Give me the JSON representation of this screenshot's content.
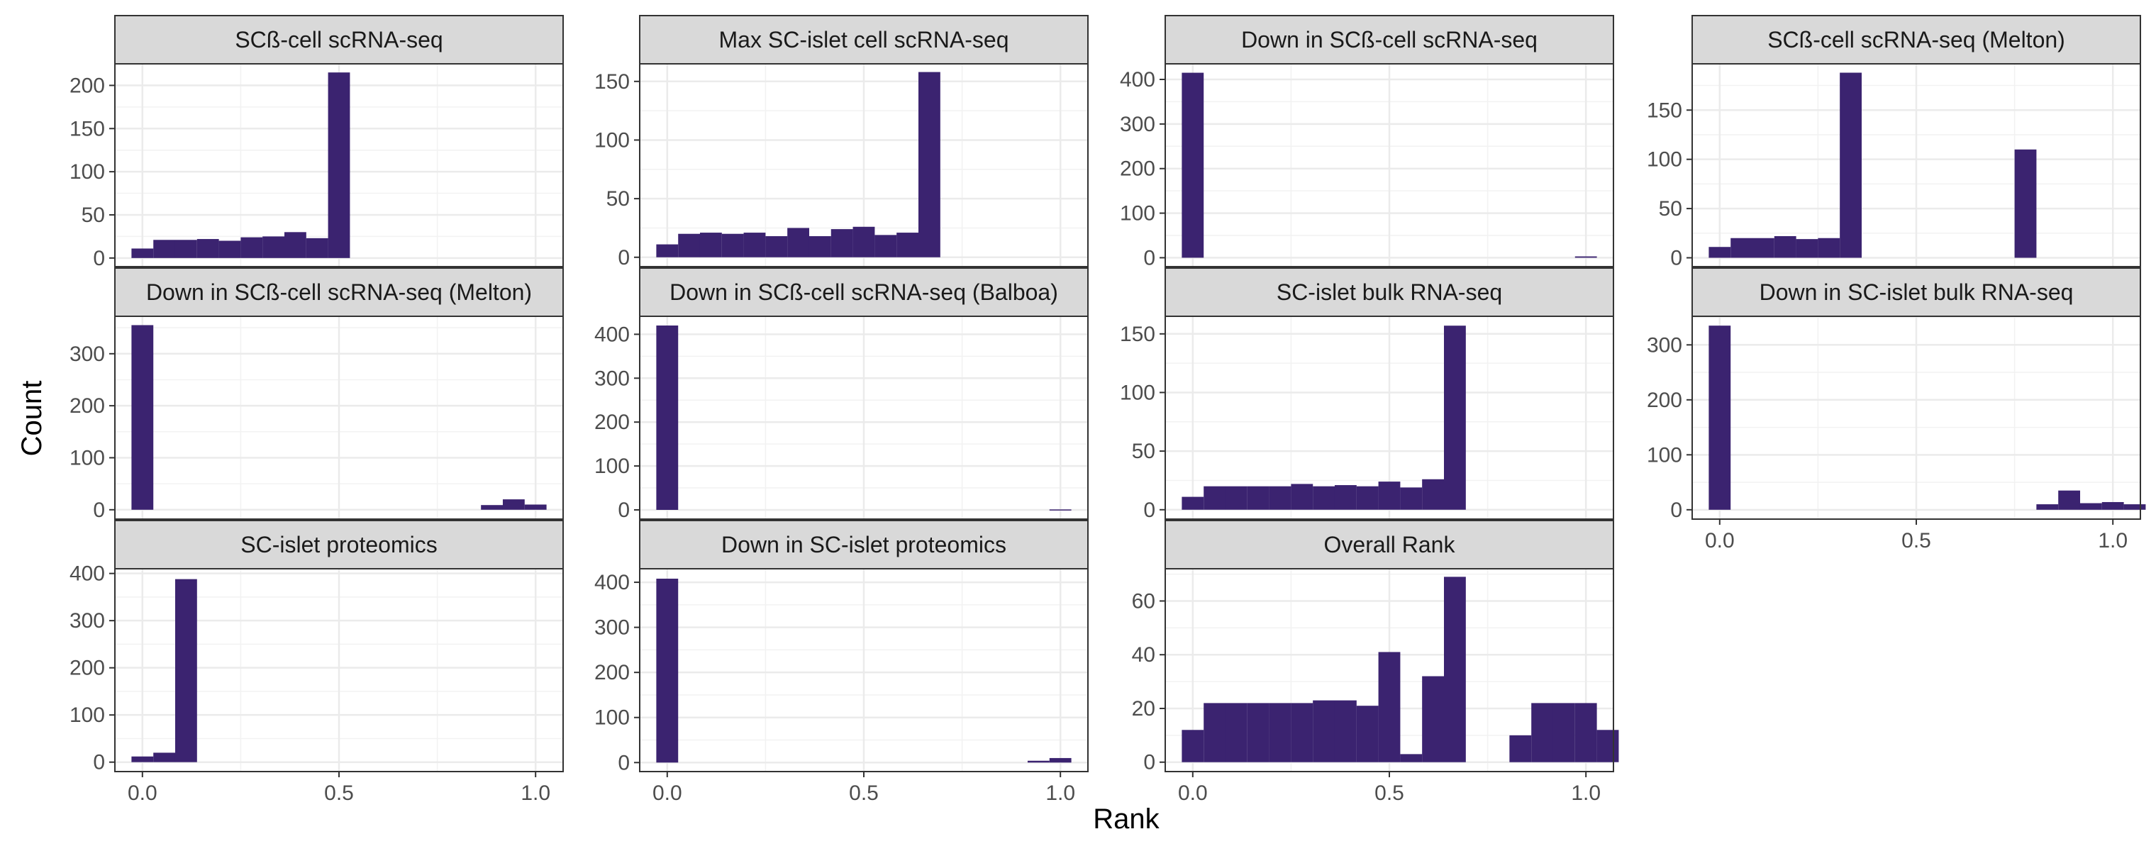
{
  "chart_data": {
    "type": "bar",
    "layout": "facet-grid",
    "xlabel": "Rank",
    "ylabel": "Count",
    "bar_color": "#3b2370",
    "strip_fill": "#d9d9d9",
    "grid": true,
    "xlim": [
      -0.07,
      1.07
    ],
    "x_ticks": [
      0.0,
      0.5,
      1.0
    ],
    "x_tick_labels": [
      "0.0",
      "0.5",
      "1.0"
    ],
    "bin_width": 0.0556,
    "panels": [
      {
        "title": "SCß-cell scRNA-seq",
        "ylim": [
          -10,
          225
        ],
        "y_ticks": [
          0,
          50,
          100,
          150,
          200
        ],
        "bins": [
          {
            "x": 0.0,
            "count": 11
          },
          {
            "x": 0.0556,
            "count": 21
          },
          {
            "x": 0.1111,
            "count": 21
          },
          {
            "x": 0.1667,
            "count": 22
          },
          {
            "x": 0.2222,
            "count": 20
          },
          {
            "x": 0.2778,
            "count": 24
          },
          {
            "x": 0.3333,
            "count": 25
          },
          {
            "x": 0.3889,
            "count": 30
          },
          {
            "x": 0.4444,
            "count": 23
          },
          {
            "x": 0.5,
            "count": 215
          }
        ]
      },
      {
        "title": "Max SC-islet cell scRNA-seq",
        "ylim": [
          -8,
          165
        ],
        "y_ticks": [
          0,
          50,
          100,
          150
        ],
        "bins": [
          {
            "x": 0.0,
            "count": 11
          },
          {
            "x": 0.0556,
            "count": 20
          },
          {
            "x": 0.1111,
            "count": 21
          },
          {
            "x": 0.1667,
            "count": 20
          },
          {
            "x": 0.2222,
            "count": 21
          },
          {
            "x": 0.2778,
            "count": 18
          },
          {
            "x": 0.3333,
            "count": 25
          },
          {
            "x": 0.3889,
            "count": 18
          },
          {
            "x": 0.4444,
            "count": 24
          },
          {
            "x": 0.5,
            "count": 26
          },
          {
            "x": 0.5556,
            "count": 19
          },
          {
            "x": 0.6111,
            "count": 21
          },
          {
            "x": 0.6667,
            "count": 158
          }
        ]
      },
      {
        "title": "Down in SCß-cell scRNA-seq",
        "ylim": [
          -20,
          435
        ],
        "y_ticks": [
          0,
          100,
          200,
          300,
          400
        ],
        "bins": [
          {
            "x": 0.0,
            "count": 415
          },
          {
            "x": 1.0,
            "count": 3
          }
        ]
      },
      {
        "title": "SCß-cell scRNA-seq (Melton)",
        "ylim": [
          -9,
          197
        ],
        "y_ticks": [
          0,
          50,
          100,
          150
        ],
        "bins": [
          {
            "x": 0.0,
            "count": 11
          },
          {
            "x": 0.0556,
            "count": 20
          },
          {
            "x": 0.1111,
            "count": 20
          },
          {
            "x": 0.1667,
            "count": 22
          },
          {
            "x": 0.2222,
            "count": 19
          },
          {
            "x": 0.2778,
            "count": 20
          },
          {
            "x": 0.3333,
            "count": 188
          },
          {
            "x": 0.7778,
            "count": 110
          }
        ]
      },
      {
        "title": "Down in SCß-cell scRNA-seq (Melton)",
        "ylim": [
          -18,
          372
        ],
        "y_ticks": [
          0,
          100,
          200,
          300
        ],
        "bins": [
          {
            "x": 0.0,
            "count": 355
          },
          {
            "x": 0.8889,
            "count": 9
          },
          {
            "x": 0.9444,
            "count": 20
          },
          {
            "x": 1.0,
            "count": 10
          }
        ]
      },
      {
        "title": "Down in SCß-cell scRNA-seq (Balboa)",
        "ylim": [
          -21,
          441
        ],
        "y_ticks": [
          0,
          100,
          200,
          300,
          400
        ],
        "bins": [
          {
            "x": 0.0,
            "count": 420
          },
          {
            "x": 1.0,
            "count": 1
          }
        ]
      },
      {
        "title": "SC-islet bulk RNA-seq",
        "ylim": [
          -8,
          165
        ],
        "y_ticks": [
          0,
          50,
          100,
          150
        ],
        "bins": [
          {
            "x": 0.0,
            "count": 11
          },
          {
            "x": 0.0556,
            "count": 20
          },
          {
            "x": 0.1111,
            "count": 20
          },
          {
            "x": 0.1667,
            "count": 20
          },
          {
            "x": 0.2222,
            "count": 20
          },
          {
            "x": 0.2778,
            "count": 22
          },
          {
            "x": 0.3333,
            "count": 20
          },
          {
            "x": 0.3889,
            "count": 21
          },
          {
            "x": 0.4444,
            "count": 20
          },
          {
            "x": 0.5,
            "count": 24
          },
          {
            "x": 0.5556,
            "count": 19
          },
          {
            "x": 0.6111,
            "count": 26
          },
          {
            "x": 0.6667,
            "count": 157
          }
        ]
      },
      {
        "title": "Down in SC-islet bulk RNA-seq",
        "ylim": [
          -17,
          352
        ],
        "y_ticks": [
          0,
          100,
          200,
          300
        ],
        "bins": [
          {
            "x": 0.0,
            "count": 335
          },
          {
            "x": 0.8333,
            "count": 10
          },
          {
            "x": 0.8889,
            "count": 35
          },
          {
            "x": 0.9444,
            "count": 12
          },
          {
            "x": 1.0,
            "count": 14
          },
          {
            "x": 1.0556,
            "count": 10
          }
        ]
      },
      {
        "title": "SC-islet proteomics",
        "ylim": [
          -20,
          410
        ],
        "y_ticks": [
          0,
          100,
          200,
          300,
          400
        ],
        "bins": [
          {
            "x": 0.0,
            "count": 12
          },
          {
            "x": 0.0556,
            "count": 20
          },
          {
            "x": 0.1111,
            "count": 388
          }
        ]
      },
      {
        "title": "Down in SC-islet proteomics",
        "ylim": [
          -20,
          430
        ],
        "y_ticks": [
          0,
          100,
          200,
          300,
          400
        ],
        "bins": [
          {
            "x": 0.0,
            "count": 408
          },
          {
            "x": 0.9444,
            "count": 4
          },
          {
            "x": 1.0,
            "count": 10
          }
        ]
      },
      {
        "title": "Overall Rank",
        "ylim": [
          -3.5,
          72
        ],
        "y_ticks": [
          0,
          20,
          40,
          60
        ],
        "bins": [
          {
            "x": 0.0,
            "count": 12
          },
          {
            "x": 0.0556,
            "count": 22
          },
          {
            "x": 0.1111,
            "count": 22
          },
          {
            "x": 0.1667,
            "count": 22
          },
          {
            "x": 0.2222,
            "count": 22
          },
          {
            "x": 0.2778,
            "count": 22
          },
          {
            "x": 0.3333,
            "count": 23
          },
          {
            "x": 0.3889,
            "count": 23
          },
          {
            "x": 0.4444,
            "count": 21
          },
          {
            "x": 0.5,
            "count": 41
          },
          {
            "x": 0.5556,
            "count": 3
          },
          {
            "x": 0.6111,
            "count": 32
          },
          {
            "x": 0.6667,
            "count": 69
          },
          {
            "x": 0.8333,
            "count": 10
          },
          {
            "x": 0.8889,
            "count": 22
          },
          {
            "x": 0.9444,
            "count": 22
          },
          {
            "x": 1.0,
            "count": 22
          },
          {
            "x": 1.0556,
            "count": 12
          }
        ]
      }
    ]
  }
}
